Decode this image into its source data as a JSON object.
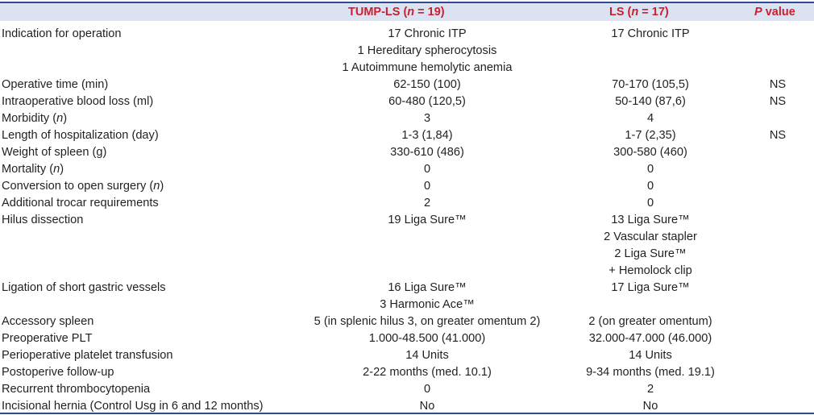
{
  "header": {
    "col_tump": {
      "pre": "TUMP-LS (",
      "n": "n",
      "post": " = 19)"
    },
    "col_ls": {
      "pre": "LS (",
      "n": "n",
      "post": " = 17)"
    },
    "col_p": {
      "p": "P",
      "post": " value"
    }
  },
  "rows": [
    {
      "label": "Indication for operation",
      "tump": [
        "17 Chronic ITP",
        "1 Hereditary spherocytosis",
        "1 Autoimmune hemolytic anemia"
      ],
      "ls": [
        "17 Chronic ITP"
      ],
      "p": ""
    },
    {
      "label": "Operative time (min)",
      "tump": [
        "62-150 (100)"
      ],
      "ls": [
        "70-170 (105,5)"
      ],
      "p": "NS"
    },
    {
      "label": "Intraoperative blood loss (ml)",
      "tump": [
        "60-480 (120,5)"
      ],
      "ls": [
        "50-140 (87,6)"
      ],
      "p": "NS"
    },
    {
      "label": "Morbidity (",
      "label_italic": "n",
      "label_post": ")",
      "tump": [
        "3"
      ],
      "ls": [
        "4"
      ],
      "p": ""
    },
    {
      "label": "Length of hospitalization (day)",
      "tump": [
        "1-3 (1,84)"
      ],
      "ls": [
        "1-7 (2,35)"
      ],
      "p": "NS"
    },
    {
      "label": "Weight of spleen (g)",
      "tump": [
        "330-610 (486)"
      ],
      "ls": [
        "300-580 (460)"
      ],
      "p": ""
    },
    {
      "label": "Mortality (",
      "label_italic": "n",
      "label_post": ")",
      "tump": [
        "0"
      ],
      "ls": [
        "0"
      ],
      "p": ""
    },
    {
      "label": "Conversion to open surgery (",
      "label_italic": "n",
      "label_post": ")",
      "tump": [
        "0"
      ],
      "ls": [
        "0"
      ],
      "p": ""
    },
    {
      "label": "Additional trocar requirements",
      "tump": [
        "2"
      ],
      "ls": [
        "0"
      ],
      "p": ""
    },
    {
      "label": "Hilus dissection",
      "tump": [
        "19 Liga Sure™"
      ],
      "ls": [
        "13 Liga Sure™",
        "2 Vascular stapler",
        "2 Liga Sure™",
        "+ Hemolock clip"
      ],
      "p": ""
    },
    {
      "label": "Ligation of short gastric vessels",
      "tump": [
        "16 Liga Sure™",
        "3 Harmonic Ace™"
      ],
      "ls": [
        "17 Liga Sure™"
      ],
      "p": ""
    },
    {
      "label": "Accessory spleen",
      "tump": [
        "5 (in splenic hilus 3, on greater omentum 2)"
      ],
      "ls": [
        "2 (on greater omentum)"
      ],
      "p": ""
    },
    {
      "label": "Preoperative PLT",
      "tump": [
        "1.000-48.500 (41.000)"
      ],
      "ls": [
        "32.000-47.000 (46.000)"
      ],
      "p": ""
    },
    {
      "label": "Perioperative platelet transfusion",
      "tump": [
        "14 Units"
      ],
      "ls": [
        "14 Units"
      ],
      "p": ""
    },
    {
      "label": "Postoperive follow-up",
      "tump": [
        "2-22 months (med. 10.1)"
      ],
      "ls": [
        "9-34 months (med. 19.1)"
      ],
      "p": ""
    },
    {
      "label": "Recurrent thrombocytopenia",
      "tump": [
        "0"
      ],
      "ls": [
        "2"
      ],
      "p": ""
    },
    {
      "label": "Incisional hernia (Control Usg in 6 and 12 months)",
      "tump": [
        "No"
      ],
      "ls": [
        "No"
      ],
      "p": ""
    }
  ]
}
